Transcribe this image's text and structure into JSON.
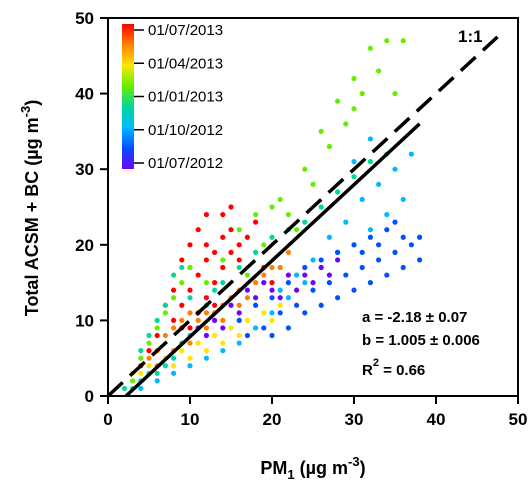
{
  "chart_data": {
    "type": "scatter",
    "title": "",
    "xlabel": {
      "prefix": "PM",
      "sub": "1",
      "mid": " (µg m",
      "sup": "-3",
      "suffix": ")"
    },
    "ylabel": {
      "prefix": "Total ACSM + BC (µg m",
      "sup": "-3",
      "suffix": ")"
    },
    "xlim": [
      0,
      50
    ],
    "ylim": [
      0,
      50
    ],
    "xticks": [
      "0",
      "10",
      "20",
      "30",
      "40",
      "50"
    ],
    "yticks": [
      "0",
      "10",
      "20",
      "30",
      "40",
      "50"
    ],
    "colorbar": {
      "labels": [
        "01/07/2013",
        "01/04/2013",
        "01/01/2013",
        "01/10/2012",
        "01/07/2012"
      ],
      "colors": [
        "#ff0000",
        "#ff8000",
        "#ffe600",
        "#66ee00",
        "#00d8a0",
        "#00b8ff",
        "#0050ff",
        "#7000ff"
      ]
    },
    "lines": [
      {
        "name": "1:1",
        "label": "1:1",
        "style": "dashed",
        "points": [
          [
            0,
            0
          ],
          [
            47.5,
            47.5
          ]
        ]
      },
      {
        "name": "fit",
        "style": "solid",
        "points": [
          [
            2.2,
            0
          ],
          [
            38,
            36.0
          ]
        ]
      }
    ],
    "fit_stats": {
      "a": "a = -2.18 ± 0.07",
      "b": "b = 1.005 ± 0.006",
      "r2_prefix": "R",
      "r2_sup": "2",
      "r2_suffix": " = 0.66"
    },
    "series": [
      {
        "color": "#ff0000",
        "points": [
          [
            8,
            10
          ],
          [
            9,
            12
          ],
          [
            10,
            14
          ],
          [
            11,
            16
          ],
          [
            12,
            18
          ],
          [
            13,
            19
          ],
          [
            14,
            21
          ],
          [
            15,
            22
          ],
          [
            10,
            20
          ],
          [
            12,
            24
          ],
          [
            9,
            18
          ],
          [
            11,
            22
          ],
          [
            14,
            24
          ],
          [
            16,
            20
          ],
          [
            13,
            15
          ],
          [
            8,
            14
          ],
          [
            7,
            12
          ],
          [
            15,
            25
          ],
          [
            12,
            13
          ],
          [
            10,
            9
          ],
          [
            6,
            8
          ],
          [
            5,
            6
          ],
          [
            4,
            4
          ],
          [
            17,
            21
          ],
          [
            18,
            23
          ],
          [
            11,
            11
          ],
          [
            13,
            12
          ],
          [
            9,
            9
          ],
          [
            16,
            18
          ],
          [
            14,
            17
          ],
          [
            19,
            17
          ],
          [
            20,
            15
          ],
          [
            12,
            20
          ],
          [
            15,
            19
          ],
          [
            10,
            17
          ]
        ]
      },
      {
        "color": "#ff8000",
        "points": [
          [
            5,
            5
          ],
          [
            6,
            6
          ],
          [
            7,
            8
          ],
          [
            8,
            9
          ],
          [
            9,
            10
          ],
          [
            10,
            11
          ],
          [
            11,
            10
          ],
          [
            12,
            11
          ],
          [
            13,
            11
          ],
          [
            14,
            12
          ],
          [
            15,
            13
          ],
          [
            16,
            14
          ],
          [
            17,
            13
          ],
          [
            18,
            15
          ],
          [
            19,
            16
          ],
          [
            20,
            17
          ],
          [
            21,
            17
          ],
          [
            10,
            7
          ],
          [
            12,
            9
          ],
          [
            14,
            10
          ],
          [
            8,
            6
          ],
          [
            6,
            4
          ],
          [
            16,
            12
          ],
          [
            18,
            12
          ],
          [
            22,
            19
          ]
        ]
      },
      {
        "color": "#ffe600",
        "points": [
          [
            3,
            3
          ],
          [
            4,
            3
          ],
          [
            5,
            4
          ],
          [
            7,
            5
          ],
          [
            9,
            6
          ],
          [
            11,
            7
          ],
          [
            13,
            8
          ],
          [
            15,
            9
          ],
          [
            17,
            10
          ],
          [
            19,
            11
          ],
          [
            21,
            12
          ],
          [
            23,
            14
          ],
          [
            12,
            6
          ],
          [
            14,
            7
          ],
          [
            8,
            4
          ],
          [
            10,
            5
          ],
          [
            16,
            8
          ],
          [
            20,
            10
          ]
        ]
      },
      {
        "color": "#66ee00",
        "points": [
          [
            3,
            2
          ],
          [
            4,
            5
          ],
          [
            5,
            7
          ],
          [
            6,
            9
          ],
          [
            7,
            11
          ],
          [
            8,
            13
          ],
          [
            9,
            15
          ],
          [
            10,
            17
          ],
          [
            12,
            15
          ],
          [
            14,
            18
          ],
          [
            16,
            22
          ],
          [
            18,
            24
          ],
          [
            20,
            25
          ],
          [
            22,
            24
          ],
          [
            24,
            30
          ],
          [
            26,
            35
          ],
          [
            28,
            39
          ],
          [
            30,
            42
          ],
          [
            32,
            46
          ],
          [
            34,
            47
          ],
          [
            36,
            47
          ],
          [
            30,
            38
          ],
          [
            33,
            43
          ],
          [
            35,
            40
          ],
          [
            31,
            40
          ],
          [
            29,
            36
          ],
          [
            27,
            33
          ],
          [
            25,
            28
          ],
          [
            21,
            26
          ],
          [
            19,
            20
          ],
          [
            17,
            16
          ],
          [
            23,
            22
          ]
        ]
      },
      {
        "color": "#00d8a0",
        "points": [
          [
            2,
            1
          ],
          [
            3,
            1
          ],
          [
            4,
            2
          ],
          [
            5,
            3
          ],
          [
            6,
            3
          ],
          [
            7,
            4
          ],
          [
            8,
            5
          ],
          [
            9,
            7
          ],
          [
            10,
            8
          ],
          [
            11,
            9
          ],
          [
            12,
            12
          ],
          [
            13,
            14
          ],
          [
            6,
            10
          ],
          [
            7,
            12
          ],
          [
            8,
            16
          ],
          [
            9,
            17
          ],
          [
            5,
            8
          ],
          [
            4,
            6
          ],
          [
            10,
            13
          ],
          [
            14,
            15
          ],
          [
            16,
            17
          ],
          [
            18,
            19
          ],
          [
            20,
            21
          ],
          [
            22,
            22
          ],
          [
            24,
            23
          ],
          [
            26,
            25
          ],
          [
            28,
            27
          ],
          [
            30,
            29
          ],
          [
            32,
            31
          ],
          [
            34,
            32
          ]
        ]
      },
      {
        "color": "#00b8ff",
        "points": [
          [
            4,
            1
          ],
          [
            6,
            2
          ],
          [
            8,
            3
          ],
          [
            10,
            4
          ],
          [
            12,
            5
          ],
          [
            14,
            6
          ],
          [
            16,
            7
          ],
          [
            18,
            9
          ],
          [
            20,
            11
          ],
          [
            22,
            13
          ],
          [
            24,
            15
          ],
          [
            26,
            17
          ],
          [
            28,
            19
          ],
          [
            30,
            20
          ],
          [
            32,
            22
          ],
          [
            34,
            24
          ],
          [
            36,
            26
          ],
          [
            35,
            30
          ],
          [
            33,
            28
          ],
          [
            31,
            26
          ],
          [
            29,
            23
          ],
          [
            27,
            21
          ],
          [
            25,
            18
          ],
          [
            23,
            16
          ],
          [
            21,
            14
          ],
          [
            37,
            32
          ],
          [
            32,
            34
          ],
          [
            30,
            31
          ]
        ]
      },
      {
        "color": "#0050ff",
        "points": [
          [
            16,
            10
          ],
          [
            18,
            12
          ],
          [
            20,
            13
          ],
          [
            22,
            15
          ],
          [
            24,
            17
          ],
          [
            26,
            18
          ],
          [
            28,
            19
          ],
          [
            30,
            20
          ],
          [
            32,
            21
          ],
          [
            34,
            22
          ],
          [
            36,
            21
          ],
          [
            38,
            21
          ],
          [
            37,
            20
          ],
          [
            35,
            19
          ],
          [
            33,
            18
          ],
          [
            31,
            17
          ],
          [
            29,
            16
          ],
          [
            27,
            15
          ],
          [
            25,
            14
          ],
          [
            23,
            12
          ],
          [
            21,
            11
          ],
          [
            19,
            9
          ],
          [
            17,
            8
          ],
          [
            38,
            18
          ],
          [
            36,
            17
          ],
          [
            34,
            16
          ],
          [
            32,
            15
          ],
          [
            30,
            14
          ],
          [
            28,
            13
          ],
          [
            26,
            12
          ],
          [
            24,
            11
          ],
          [
            22,
            9
          ],
          [
            20,
            8
          ],
          [
            35,
            23
          ],
          [
            33,
            20
          ],
          [
            31,
            19
          ]
        ]
      },
      {
        "color": "#7000ff",
        "points": [
          [
            12,
            8
          ],
          [
            14,
            9
          ],
          [
            16,
            11
          ],
          [
            18,
            13
          ],
          [
            20,
            14
          ],
          [
            22,
            16
          ],
          [
            24,
            16
          ],
          [
            26,
            17
          ],
          [
            28,
            18
          ],
          [
            15,
            12
          ],
          [
            17,
            14
          ],
          [
            19,
            15
          ],
          [
            21,
            13
          ],
          [
            23,
            14
          ],
          [
            25,
            15
          ],
          [
            13,
            10
          ],
          [
            11,
            9
          ],
          [
            27,
            16
          ]
        ]
      }
    ]
  }
}
